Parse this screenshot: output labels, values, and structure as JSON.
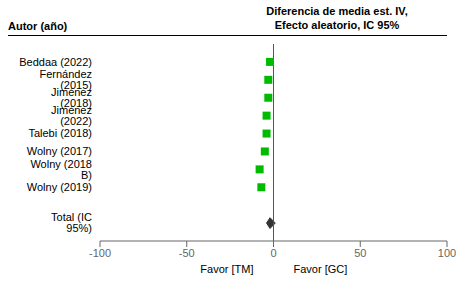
{
  "chart_data": {
    "type": "forest",
    "title": "Diferencia de media est. IV,",
    "subtitle": "Efecto aleatorio, IC 95%",
    "column_header": "Autor (año)",
    "categories": [
      "Beddaa (2022)",
      "Fernández (2015)",
      "Jiménez (2018)",
      "Jiménez (2022)",
      "Talebi (2018)",
      "Wolny (2017)",
      "Wolny (2018 B)",
      "Wolny (2019)"
    ],
    "values": [
      -2,
      -3,
      -3,
      -4,
      -4,
      -5,
      -8,
      -7
    ],
    "color": "#00bb00",
    "marker": "square",
    "total": {
      "label": "Total (IC 95%)",
      "value": -2,
      "ci_low": -4,
      "ci_high": 1,
      "color": "#333333"
    },
    "xlim": [
      -100,
      100
    ],
    "xticks": [
      -100,
      -50,
      0,
      50,
      100
    ],
    "x_reference": 0,
    "annotations": [
      "Favor [TM]",
      "Favor [GC]"
    ]
  }
}
